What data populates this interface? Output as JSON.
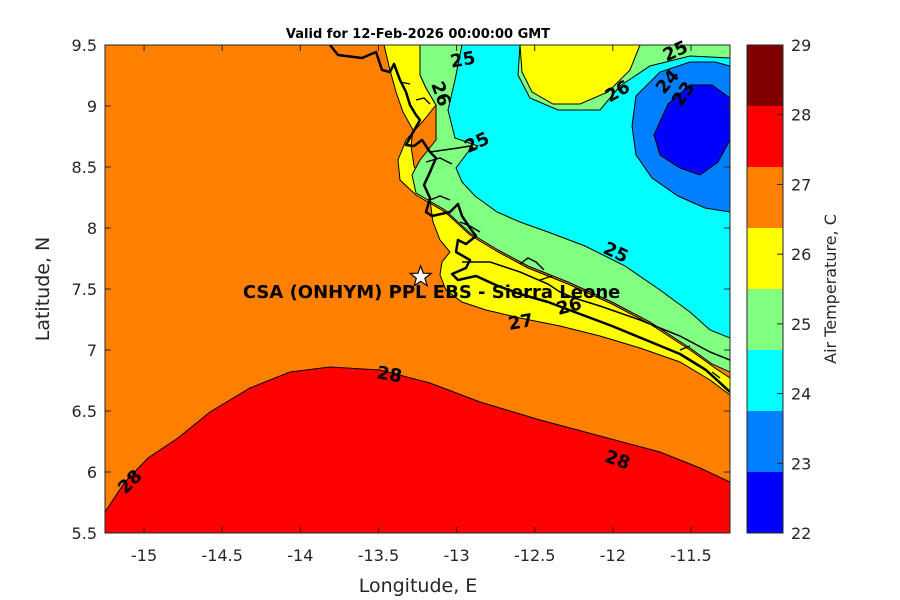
{
  "title": "Valid for 12-Feb-2026 00:00:00 GMT",
  "site_label": "CSA (ONHYM) PPL EBS  - Sierra Leone",
  "site_marker_icon": "star-icon",
  "map": {
    "xlabel": "Longitude, E",
    "ylabel": "Latitude, N",
    "xlim": [
      -15.25,
      -11.25
    ],
    "ylim": [
      5.5,
      9.5
    ],
    "x_ticks": [
      "-15",
      "-14.5",
      "-14",
      "-13.5",
      "-13",
      "-12.5",
      "-12",
      "-11.5"
    ],
    "y_ticks": [
      "5.5",
      "6",
      "6.5",
      "7",
      "7.5",
      "8",
      "8.5",
      "9",
      "9.5"
    ],
    "site": {
      "lon": -13.23,
      "lat": 7.6
    },
    "contour_labels": [
      {
        "text": "25",
        "lon": -12.96,
        "lat": 9.38
      },
      {
        "text": "26",
        "lon": -13.1,
        "lat": 9.1
      },
      {
        "text": "25",
        "lon": -12.87,
        "lat": 8.7
      },
      {
        "text": "26",
        "lon": -11.97,
        "lat": 9.12
      },
      {
        "text": "25",
        "lon": -11.6,
        "lat": 9.45
      },
      {
        "text": "24",
        "lon": -11.65,
        "lat": 9.2
      },
      {
        "text": "23",
        "lon": -11.55,
        "lat": 9.1
      },
      {
        "text": "25",
        "lon": -11.98,
        "lat": 7.8
      },
      {
        "text": "26",
        "lon": -12.28,
        "lat": 7.36
      },
      {
        "text": "27",
        "lon": -12.59,
        "lat": 7.23
      },
      {
        "text": "28",
        "lon": -13.43,
        "lat": 6.8
      },
      {
        "text": "28",
        "lon": -11.97,
        "lat": 6.1
      },
      {
        "text": "28",
        "lon": -15.09,
        "lat": 5.92
      }
    ]
  },
  "colorbar": {
    "label": "Air Temperature, C",
    "ticks": [
      "22",
      "23",
      "24",
      "25",
      "26",
      "27",
      "28",
      "29"
    ],
    "levels": [
      22,
      23,
      24,
      25,
      26,
      27,
      28,
      29
    ],
    "colors": [
      "#0000ff",
      "#0080ff",
      "#00ffff",
      "#80ff80",
      "#ffff00",
      "#ff8000",
      "#ff0000",
      "#800000"
    ]
  }
}
